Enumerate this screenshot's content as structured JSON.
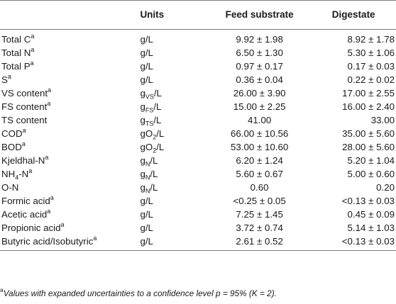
{
  "table": {
    "headers": {
      "parameter": "",
      "units": "Units",
      "feed": "Feed substrate",
      "digestate": "Digestate"
    },
    "rows": [
      {
        "name": "Total C",
        "sup": "a",
        "unit": "g/L",
        "unit_base": "",
        "unit_sub": "",
        "unit_tail": "",
        "feed": "9.92 ± 1.98",
        "digestate": "8.92 ± 1.78"
      },
      {
        "name": "Total N",
        "sup": "a",
        "unit": "g/L",
        "unit_base": "",
        "unit_sub": "",
        "unit_tail": "",
        "feed": "6.50 ± 1.30",
        "digestate": "5.30 ± 1.06"
      },
      {
        "name": "Total P",
        "sup": "a",
        "unit": "g/L",
        "unit_base": "",
        "unit_sub": "",
        "unit_tail": "",
        "feed": "0.97 ± 0.17",
        "digestate": "0.17 ± 0.03"
      },
      {
        "name": "S",
        "sup": "a",
        "unit": "g/L",
        "unit_base": "",
        "unit_sub": "",
        "unit_tail": "",
        "feed": "0.36 ± 0.04",
        "digestate": "0.22 ± 0.02"
      },
      {
        "name": "VS content",
        "sup": "a",
        "unit": "",
        "unit_base": "g",
        "unit_sub": "VS",
        "unit_tail": "/L",
        "feed": "26.00 ± 3.90",
        "digestate": "17.00 ± 2.55"
      },
      {
        "name": "FS content",
        "sup": "a",
        "unit": "",
        "unit_base": "g",
        "unit_sub": "FS",
        "unit_tail": "/L",
        "feed": "15.00 ± 2.25",
        "digestate": "16.00 ± 2.40"
      },
      {
        "name": "TS content",
        "sup": "",
        "unit": "",
        "unit_base": "g",
        "unit_sub": "TS",
        "unit_tail": "/L",
        "feed": "41.00",
        "digestate": "33.00"
      },
      {
        "name": "COD",
        "sup": "a",
        "unit": "",
        "unit_base": "gO",
        "unit_sub": "2",
        "unit_tail": "/L",
        "feed": "66.00 ± 10.56",
        "digestate": "35.00 ± 5.60"
      },
      {
        "name": "BOD",
        "sup": "a",
        "unit": "",
        "unit_base": "gO",
        "unit_sub": "2",
        "unit_tail": "/L",
        "feed": "53.00 ± 10.60",
        "digestate": "28.00 ± 5.60"
      },
      {
        "name": "Kjeldhal-N",
        "sup": "a",
        "unit": "",
        "unit_base": "g",
        "unit_sub": "N",
        "unit_tail": "/L",
        "feed": "6.20 ± 1.24",
        "digestate": "5.20 ± 1.04"
      },
      {
        "name": "NH",
        "name_sub": "4",
        "name_tail": "-N",
        "sup": "a",
        "unit": "",
        "unit_base": "g",
        "unit_sub": "N",
        "unit_tail": "/L",
        "feed": "5.60 ± 0.67",
        "digestate": "5.00 ± 0.60"
      },
      {
        "name": "O-N",
        "sup": "",
        "unit": "",
        "unit_base": "g",
        "unit_sub": "N",
        "unit_tail": "/L",
        "feed": "0.60",
        "digestate": "0.20"
      },
      {
        "name": "Formic acid",
        "sup": "a",
        "unit": "g/L",
        "unit_base": "",
        "unit_sub": "",
        "unit_tail": "",
        "feed": "<0.25 ± 0.05",
        "digestate": "<0.13 ± 0.03"
      },
      {
        "name": "Acetic acid",
        "sup": "a",
        "unit": "g/L",
        "unit_base": "",
        "unit_sub": "",
        "unit_tail": "",
        "feed": "7.25 ± 1.45",
        "digestate": "0.45 ± 0.09"
      },
      {
        "name": "Propionic acid",
        "sup": "a",
        "unit": "g/L",
        "unit_base": "",
        "unit_sub": "",
        "unit_tail": "",
        "feed": "3.72 ± 0.74",
        "digestate": "5.14 ± 1.03"
      },
      {
        "name": "Butyric acid/Isobutyric",
        "sup": "a",
        "unit": "g/L",
        "unit_base": "",
        "unit_sub": "",
        "unit_tail": "",
        "feed": "2.61 ± 0.52",
        "digestate": "<0.13 ± 0.03"
      }
    ]
  },
  "footnote": {
    "marker": "a",
    "text": "Values with expanded uncertainties to a confidence level p = 95% (K = 2)."
  }
}
